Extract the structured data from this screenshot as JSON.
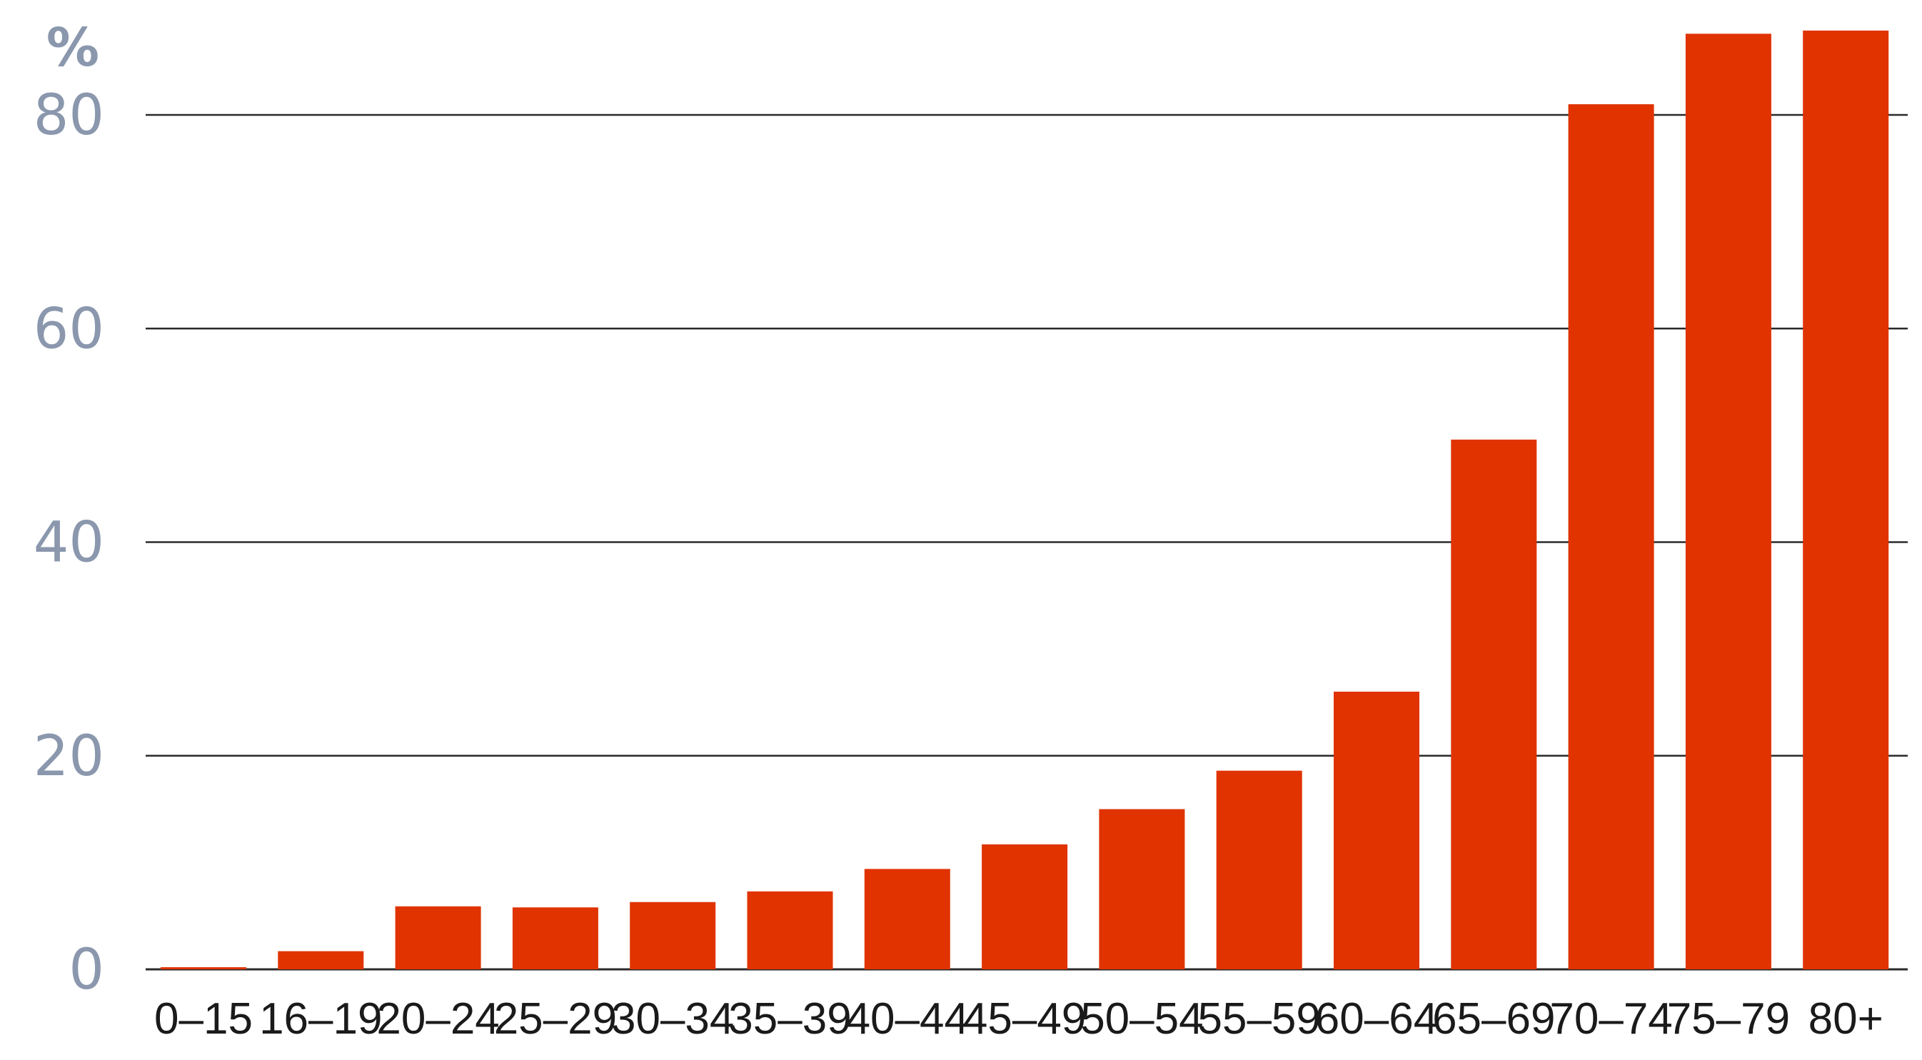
{
  "chart_data": {
    "type": "bar",
    "title": "",
    "xlabel": "",
    "ylabel": "",
    "y_unit_label": "%",
    "categories": [
      "0–15",
      "16–19",
      "20–24",
      "25–29",
      "30–34",
      "35–39",
      "40–44",
      "45–49",
      "50–54",
      "55–59",
      "60–64",
      "65–69",
      "70–74",
      "75–79",
      "80+"
    ],
    "values": [
      0.2,
      1.7,
      5.9,
      5.8,
      6.3,
      7.3,
      9.4,
      11.7,
      15.0,
      18.6,
      26.0,
      49.6,
      81.0,
      87.6,
      87.9
    ],
    "ylim": [
      0,
      90
    ],
    "yticks": [
      0,
      20,
      40,
      60,
      80
    ],
    "grid": true,
    "colors": {
      "bar": "#e03300",
      "ytick_text": "#8a97ad",
      "xtick_text": "#1a1a1a",
      "gridline": "#2a2a2a"
    }
  }
}
